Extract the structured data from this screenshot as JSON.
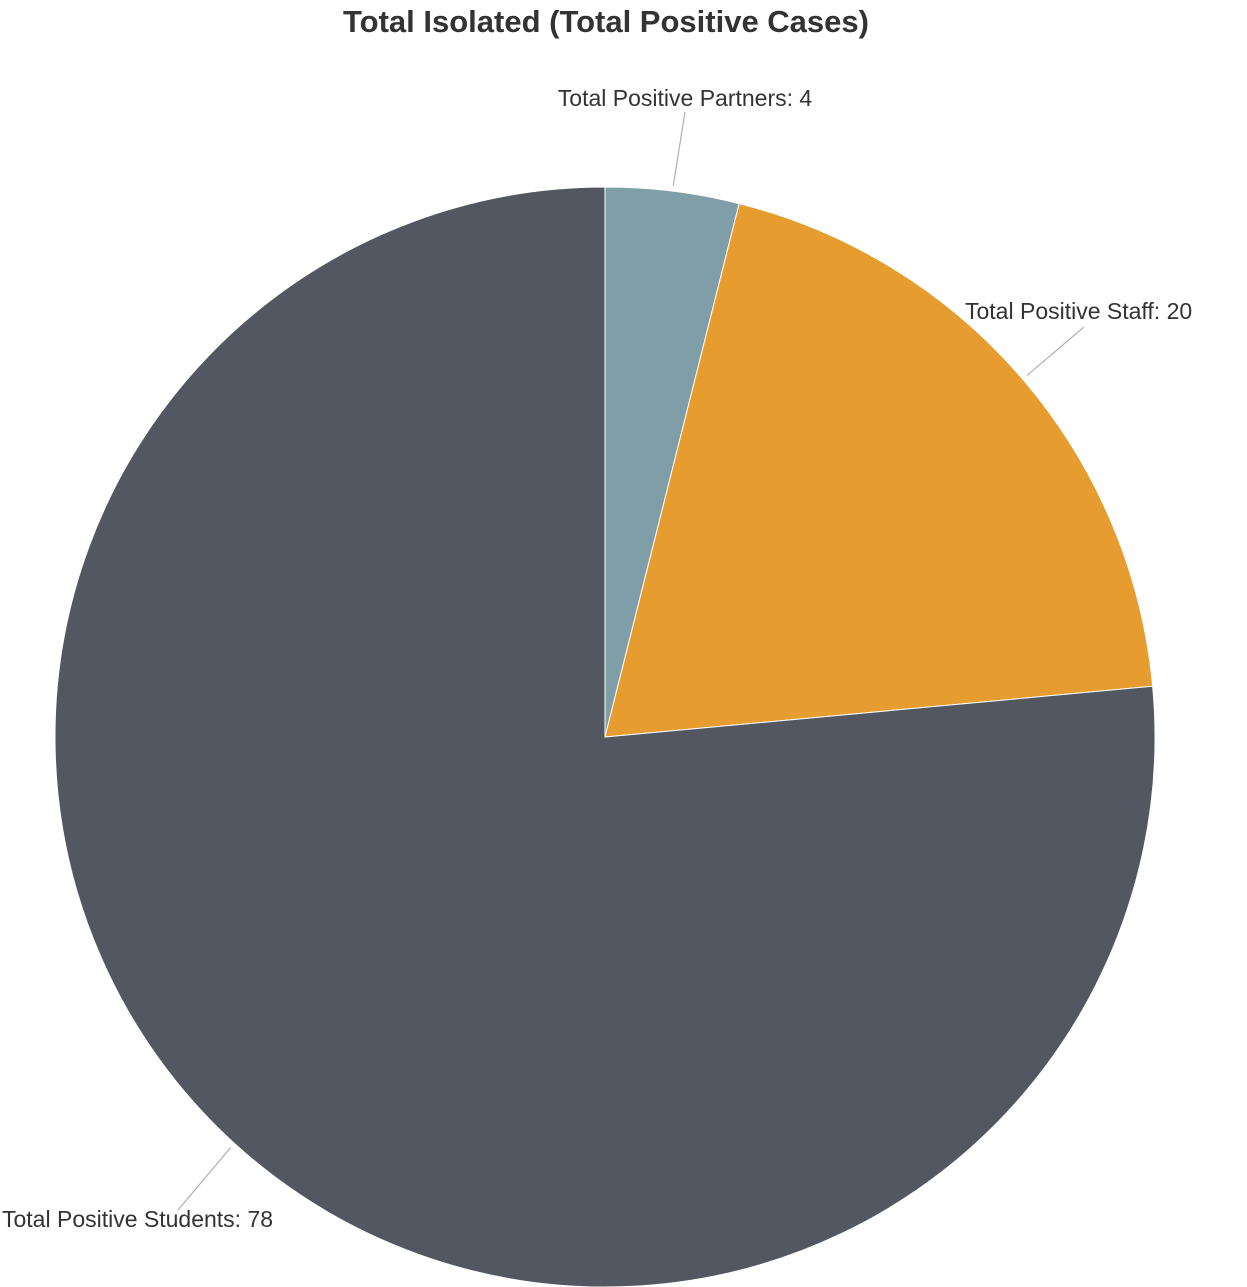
{
  "chart_data": {
    "type": "pie",
    "title": "Total Isolated (Total Positive Cases)",
    "slices": [
      {
        "label": "Total Positive Partners: 4",
        "name": "Total Positive Partners",
        "value": 4,
        "color": "#7f9ea8"
      },
      {
        "label": "Total Positive Staff: 20",
        "name": "Total Positive Staff",
        "value": 20,
        "color": "#e79c2f"
      },
      {
        "label": "Total Positive Students: 78",
        "name": "Total Positive Students",
        "value": 78,
        "color": "#525762"
      }
    ],
    "start_angle_deg": 0,
    "direction": "clockwise",
    "legend": "none"
  }
}
